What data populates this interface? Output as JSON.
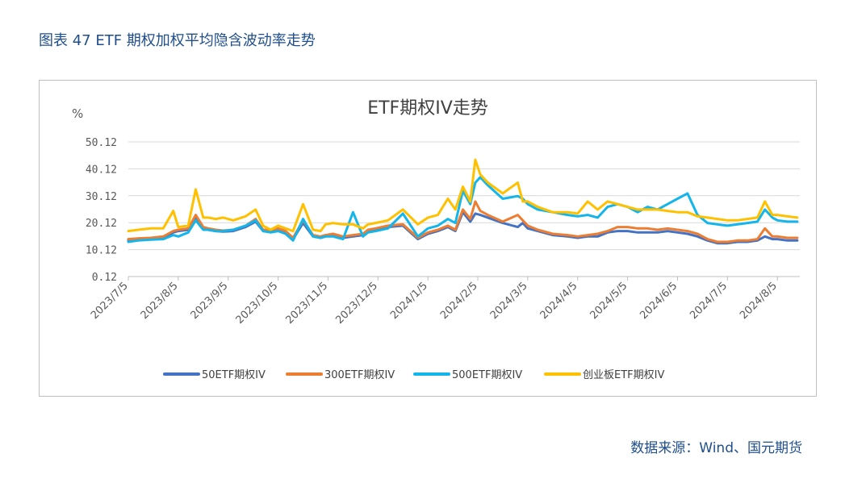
{
  "figure_title": "图表 47 ETF 期权加权平均隐含波动率走势",
  "source": "数据来源：Wind、国元期货",
  "chart_data": {
    "type": "line",
    "title": "ETF期权IV走势",
    "ylabel": "%",
    "ylim": [
      0.12,
      50.12
    ],
    "yticks": [
      "50.12",
      "40.12",
      "30.12",
      "20.12",
      "10.12",
      "0.12"
    ],
    "ytick_values": [
      50.12,
      40.12,
      30.12,
      20.12,
      10.12,
      0.12
    ],
    "xticks": [
      "2023/7/5",
      "2023/8/5",
      "2023/9/5",
      "2023/10/5",
      "2023/11/5",
      "2023/12/5",
      "2024/1/5",
      "2024/2/5",
      "2024/3/5",
      "2024/4/5",
      "2024/5/5",
      "2024/6/5",
      "2024/7/5",
      "2024/8/5"
    ],
    "xlim": [
      0,
      13.45
    ],
    "grid": true,
    "legend_position": "bottom",
    "series": [
      {
        "name": "50ETF期权IV",
        "color": "#4472c4",
        "x": [
          0,
          0.2,
          0.45,
          0.7,
          0.9,
          1.0,
          1.2,
          1.35,
          1.5,
          1.6,
          1.75,
          1.9,
          2.1,
          2.35,
          2.55,
          2.7,
          2.85,
          3.0,
          3.15,
          3.3,
          3.5,
          3.7,
          3.85,
          3.95,
          4.1,
          4.3,
          4.5,
          4.7,
          4.8,
          4.95,
          5.2,
          5.5,
          5.8,
          6.0,
          6.2,
          6.4,
          6.55,
          6.7,
          6.85,
          6.95,
          7.05,
          7.2,
          7.5,
          7.8,
          7.9,
          8.0,
          8.2,
          8.5,
          8.8,
          9.0,
          9.2,
          9.4,
          9.6,
          9.8,
          10.0,
          10.2,
          10.4,
          10.6,
          10.8,
          11.0,
          11.2,
          11.4,
          11.6,
          11.8,
          12.0,
          12.2,
          12.4,
          12.6,
          12.75,
          12.9,
          13.0,
          13.2,
          13.4
        ],
        "values": [
          13.5,
          13.8,
          14.0,
          14.5,
          16.5,
          17.0,
          17.5,
          22.0,
          18.0,
          17.5,
          17.0,
          16.8,
          17.0,
          18.5,
          20.5,
          17.0,
          17.0,
          17.5,
          16.5,
          14.0,
          20.0,
          15.0,
          14.5,
          15.0,
          15.5,
          14.5,
          15.0,
          15.5,
          17.0,
          17.5,
          18.5,
          19.0,
          14.0,
          16.0,
          17.0,
          18.5,
          17.0,
          24.0,
          20.5,
          23.5,
          23.0,
          22.0,
          20.0,
          18.5,
          20.0,
          18.0,
          17.0,
          15.5,
          15.0,
          14.5,
          15.0,
          15.0,
          16.5,
          17.0,
          17.0,
          16.5,
          16.5,
          16.5,
          17.0,
          16.5,
          16.0,
          15.0,
          13.5,
          12.5,
          12.5,
          13.0,
          13.0,
          13.5,
          15.0,
          14.0,
          14.0,
          13.5,
          13.5
        ]
      },
      {
        "name": "300ETF期权IV",
        "color": "#ed7d31",
        "x": [
          0,
          0.2,
          0.45,
          0.7,
          0.9,
          1.0,
          1.2,
          1.35,
          1.5,
          1.6,
          1.75,
          1.9,
          2.1,
          2.35,
          2.55,
          2.7,
          2.85,
          3.0,
          3.15,
          3.3,
          3.5,
          3.7,
          3.85,
          3.95,
          4.1,
          4.3,
          4.5,
          4.7,
          4.8,
          4.95,
          5.2,
          5.5,
          5.8,
          6.0,
          6.2,
          6.4,
          6.55,
          6.7,
          6.85,
          6.95,
          7.05,
          7.2,
          7.5,
          7.8,
          7.9,
          8.0,
          8.2,
          8.5,
          8.8,
          9.0,
          9.2,
          9.4,
          9.6,
          9.8,
          10.0,
          10.2,
          10.4,
          10.6,
          10.8,
          11.0,
          11.2,
          11.4,
          11.6,
          11.8,
          12.0,
          12.2,
          12.4,
          12.6,
          12.75,
          12.9,
          13.0,
          13.2,
          13.4
        ],
        "values": [
          14.0,
          14.3,
          14.5,
          15.0,
          17.0,
          17.5,
          18.0,
          23.0,
          18.5,
          18.0,
          17.5,
          17.2,
          17.5,
          19.0,
          21.5,
          17.5,
          17.5,
          18.0,
          17.0,
          14.5,
          21.0,
          15.5,
          15.0,
          15.5,
          16.0,
          15.0,
          15.5,
          16.0,
          17.5,
          18.0,
          19.0,
          19.5,
          14.5,
          16.5,
          17.5,
          19.0,
          17.5,
          25.0,
          21.5,
          28.0,
          24.5,
          23.0,
          20.5,
          23.0,
          21.0,
          19.0,
          17.5,
          16.0,
          15.5,
          15.0,
          15.5,
          16.0,
          17.0,
          18.5,
          18.5,
          18.0,
          18.0,
          17.5,
          18.0,
          17.5,
          17.0,
          16.0,
          14.0,
          13.0,
          13.0,
          13.5,
          13.5,
          14.0,
          18.0,
          15.0,
          15.0,
          14.5,
          14.5
        ]
      },
      {
        "name": "500ETF期权IV",
        "color": "#13b5ea",
        "x": [
          0,
          0.2,
          0.45,
          0.7,
          0.9,
          1.0,
          1.2,
          1.35,
          1.5,
          1.6,
          1.75,
          1.9,
          2.1,
          2.35,
          2.55,
          2.7,
          2.85,
          3.0,
          3.15,
          3.3,
          3.5,
          3.7,
          3.85,
          3.95,
          4.1,
          4.3,
          4.5,
          4.7,
          4.8,
          4.95,
          5.2,
          5.5,
          5.8,
          6.0,
          6.2,
          6.4,
          6.55,
          6.7,
          6.85,
          6.95,
          7.05,
          7.2,
          7.5,
          7.8,
          7.9,
          8.0,
          8.2,
          8.5,
          8.8,
          9.0,
          9.2,
          9.4,
          9.6,
          9.8,
          10.0,
          10.2,
          10.4,
          10.6,
          10.8,
          11.0,
          11.2,
          11.4,
          11.6,
          11.8,
          12.0,
          12.2,
          12.4,
          12.6,
          12.75,
          12.9,
          13.0,
          13.2,
          13.4
        ],
        "values": [
          13.0,
          13.5,
          13.8,
          14.0,
          15.5,
          15.0,
          16.5,
          21.0,
          17.5,
          17.5,
          17.0,
          17.0,
          17.5,
          19.0,
          21.0,
          17.0,
          16.5,
          17.0,
          16.0,
          13.5,
          21.5,
          15.0,
          14.5,
          15.0,
          15.0,
          14.0,
          24.0,
          15.0,
          16.5,
          17.0,
          18.0,
          23.5,
          15.0,
          18.0,
          19.0,
          21.5,
          20.0,
          32.0,
          27.0,
          35.0,
          37.0,
          34.0,
          29.0,
          30.0,
          29.0,
          27.0,
          25.0,
          24.0,
          23.0,
          22.5,
          23.0,
          22.0,
          26.0,
          27.0,
          26.0,
          24.0,
          26.0,
          25.0,
          27.0,
          29.0,
          31.0,
          23.0,
          20.0,
          19.5,
          19.0,
          19.5,
          20.0,
          20.5,
          25.0,
          22.0,
          21.0,
          20.5,
          20.5
        ]
      },
      {
        "name": "创业板ETF期权IV",
        "color": "#ffc000",
        "x": [
          0,
          0.2,
          0.45,
          0.7,
          0.9,
          1.0,
          1.2,
          1.35,
          1.5,
          1.6,
          1.75,
          1.9,
          2.1,
          2.35,
          2.55,
          2.7,
          2.85,
          3.0,
          3.15,
          3.3,
          3.5,
          3.7,
          3.85,
          3.95,
          4.1,
          4.3,
          4.5,
          4.7,
          4.8,
          4.95,
          5.2,
          5.5,
          5.8,
          6.0,
          6.2,
          6.4,
          6.55,
          6.7,
          6.85,
          6.95,
          7.05,
          7.2,
          7.5,
          7.8,
          7.9,
          8.0,
          8.2,
          8.5,
          8.8,
          9.0,
          9.2,
          9.4,
          9.6,
          9.8,
          10.0,
          10.2,
          10.4,
          10.6,
          10.8,
          11.0,
          11.2,
          11.4,
          11.6,
          11.8,
          12.0,
          12.2,
          12.4,
          12.6,
          12.75,
          12.9,
          13.0,
          13.2,
          13.4
        ],
        "values": [
          17.0,
          17.5,
          18.0,
          18.0,
          24.5,
          18.5,
          19.0,
          32.5,
          22.0,
          22.0,
          21.5,
          22.0,
          21.0,
          22.5,
          25.0,
          19.0,
          17.5,
          19.0,
          18.0,
          17.0,
          27.0,
          17.5,
          17.0,
          19.5,
          20.0,
          19.5,
          19.5,
          18.0,
          19.5,
          20.0,
          21.0,
          25.0,
          19.5,
          22.0,
          23.0,
          29.0,
          25.0,
          33.5,
          28.0,
          43.5,
          38.0,
          35.0,
          31.0,
          35.0,
          28.0,
          28.0,
          26.0,
          24.0,
          24.0,
          23.5,
          28.0,
          25.0,
          28.0,
          27.0,
          26.0,
          25.0,
          25.0,
          25.0,
          24.5,
          24.0,
          24.0,
          22.5,
          22.0,
          21.5,
          21.0,
          21.0,
          21.5,
          22.0,
          28.0,
          23.0,
          23.0,
          22.5,
          22.0
        ]
      }
    ]
  }
}
